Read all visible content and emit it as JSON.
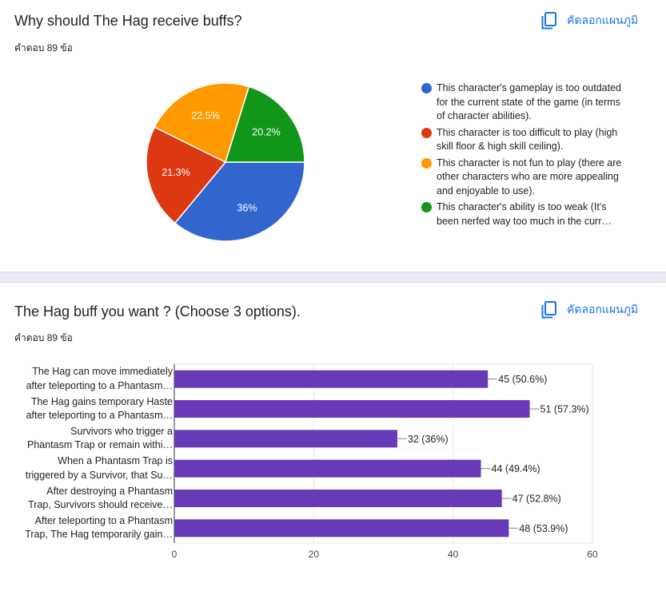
{
  "colors": {
    "link": "#1a73e8",
    "pie": [
      "#3366cc",
      "#dc3912",
      "#ff9900",
      "#109618"
    ],
    "bar": "#673ab7"
  },
  "card1": {
    "title": "Why should The Hag receive buffs?",
    "responses": "คำตอบ 89 ข้อ",
    "copy_label": "คัดลอกแผนภูมิ",
    "copy_icon": "copy-icon"
  },
  "card2": {
    "title": "The Hag buff you want ? (Choose 3 options).",
    "responses": "คำตอบ 89 ข้อ",
    "copy_label": "คัดลอกแผนภูมิ",
    "copy_icon": "copy-icon"
  },
  "chart_data": [
    {
      "type": "pie",
      "categories": [
        "This character's gameplay is too outdated for the current state of the game (in terms of character abilities).",
        "This character is too difficult to play (high skill floor & high skill ceiling).",
        "This character is not fun to play (there are other characters who are more appealing and enjoyable to use).",
        "This character's ability is too weak (It's been nerfed way too much in the curr…"
      ],
      "values": [
        36,
        21.3,
        22.5,
        20.2
      ],
      "labels": [
        "36%",
        "21.3%",
        "22.5%",
        "20.2%"
      ],
      "legend_placement": "right"
    },
    {
      "type": "bar",
      "orientation": "horizontal",
      "categories": [
        [
          "The Hag can move immediately",
          "after teleporting to a Phantasm…"
        ],
        [
          "The Hag gains temporary Haste",
          "after teleporting to a Phantasm…"
        ],
        [
          "Survivors who trigger a",
          "Phantasm Trap or remain withi…"
        ],
        [
          "When a Phantasm Trap is",
          "triggered by a Survivor, that Su…"
        ],
        [
          "After destroying a Phantasm",
          "Trap, Survivors should receive…"
        ],
        [
          "After teleporting to a Phantasm",
          "Trap, The Hag temporarily gain…"
        ]
      ],
      "values": [
        45,
        51,
        32,
        44,
        47,
        48
      ],
      "labels": [
        "45 (50.6%)",
        "51 (57.3%)",
        "32 (36%)",
        "44 (49.4%)",
        "47 (52.8%)",
        "48 (53.9%)"
      ],
      "xlim": [
        0,
        60
      ],
      "xticks": [
        "0",
        "20",
        "40",
        "60"
      ],
      "grid": true
    }
  ]
}
